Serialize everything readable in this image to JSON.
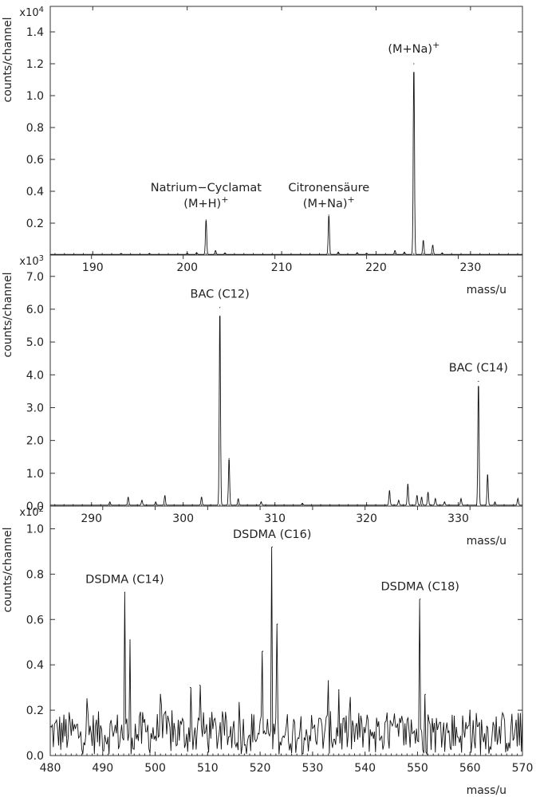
{
  "chart_data": [
    {
      "type": "line",
      "ylabel": "counts/channel",
      "xlabel": "mass/u",
      "y_multiplier": "x10",
      "y_multiplier_exp": "4",
      "xlim": [
        185.5,
        235.5
      ],
      "ylim": [
        0,
        1.56
      ],
      "x_ticks": [
        190,
        200,
        210,
        220,
        230
      ],
      "y_ticks": [
        0.2,
        0.4,
        0.6,
        0.8,
        1.0,
        1.2,
        1.4
      ],
      "y_tick_labels": [
        "0.2",
        "0.4",
        "0.6",
        "0.8",
        "1.0",
        "1.2",
        "1.4"
      ],
      "baseline": 0.004,
      "peaks": [
        {
          "x": 202,
          "y": 0.22
        },
        {
          "x": 203,
          "y": 0.025
        },
        {
          "x": 204,
          "y": 0.01
        },
        {
          "x": 200,
          "y": 0.008
        },
        {
          "x": 201,
          "y": 0.012
        },
        {
          "x": 215,
          "y": 0.25
        },
        {
          "x": 216,
          "y": 0.015
        },
        {
          "x": 218,
          "y": 0.012
        },
        {
          "x": 219,
          "y": 0.008
        },
        {
          "x": 222,
          "y": 0.025
        },
        {
          "x": 223,
          "y": 0.015
        },
        {
          "x": 224,
          "y": 1.2
        },
        {
          "x": 225,
          "y": 0.09
        },
        {
          "x": 226,
          "y": 0.06
        },
        {
          "x": 227,
          "y": 0.01
        },
        {
          "x": 193,
          "y": 0.006
        },
        {
          "x": 196,
          "y": 0.006
        }
      ],
      "annotations": [
        {
          "lines": [
            "Natrium−Cyclamat",
            "(M+H)"
          ],
          "sup": "+",
          "x": 202,
          "y": 0.3
        },
        {
          "lines": [
            "Citronensäure",
            "(M+Na)"
          ],
          "sup": "+",
          "x": 215,
          "y": 0.3
        },
        {
          "lines": [
            "(M+Na)"
          ],
          "sup": "+",
          "x": 224,
          "y": 1.27
        }
      ]
    },
    {
      "type": "line",
      "ylabel": "counts/channel",
      "xlabel": "mass/u",
      "y_multiplier": "x10",
      "y_multiplier_exp": "3",
      "xlim": [
        285.5,
        337
      ],
      "ylim": [
        0,
        7.65
      ],
      "x_ticks": [
        290,
        300,
        310,
        320,
        330
      ],
      "y_ticks": [
        0.0,
        1.0,
        2.0,
        3.0,
        4.0,
        5.0,
        6.0,
        7.0
      ],
      "y_tick_labels": [
        "0.0",
        "1.0",
        "2.0",
        "3.0",
        "4.0",
        "5.0",
        "6.0",
        "7.0"
      ],
      "baseline": 0.03,
      "peaks": [
        {
          "x": 304,
          "y": 6.05
        },
        {
          "x": 305,
          "y": 1.45
        },
        {
          "x": 306,
          "y": 0.2
        },
        {
          "x": 302,
          "y": 0.25
        },
        {
          "x": 298,
          "y": 0.3
        },
        {
          "x": 294,
          "y": 0.25
        },
        {
          "x": 295.5,
          "y": 0.15
        },
        {
          "x": 292,
          "y": 0.1
        },
        {
          "x": 297,
          "y": 0.1
        },
        {
          "x": 308.5,
          "y": 0.1
        },
        {
          "x": 313,
          "y": 0.06
        },
        {
          "x": 322.5,
          "y": 0.45
        },
        {
          "x": 323.5,
          "y": 0.15
        },
        {
          "x": 324.5,
          "y": 0.65
        },
        {
          "x": 325.5,
          "y": 0.3
        },
        {
          "x": 326,
          "y": 0.25
        },
        {
          "x": 326.7,
          "y": 0.4
        },
        {
          "x": 327.5,
          "y": 0.2
        },
        {
          "x": 328.5,
          "y": 0.1
        },
        {
          "x": 330.3,
          "y": 0.2
        },
        {
          "x": 332.2,
          "y": 3.8
        },
        {
          "x": 333.2,
          "y": 0.95
        },
        {
          "x": 334,
          "y": 0.1
        },
        {
          "x": 336.5,
          "y": 0.2
        }
      ],
      "annotations": [
        {
          "lines": [
            "BAC (C12)"
          ],
          "sup": "",
          "x": 304,
          "y": 6.35
        },
        {
          "lines": [
            "BAC (C14)"
          ],
          "sup": "",
          "x": 332.2,
          "y": 4.1
        }
      ]
    },
    {
      "type": "line",
      "ylabel": "counts/channel",
      "xlabel": "mass/u",
      "y_multiplier": "x10",
      "y_multiplier_exp": "2",
      "xlim": [
        480,
        570
      ],
      "ylim": [
        0,
        1.1
      ],
      "x_ticks": [
        480,
        490,
        500,
        510,
        520,
        530,
        540,
        550,
        560,
        570
      ],
      "y_ticks": [
        0.0,
        0.2,
        0.4,
        0.6,
        0.8,
        1.0
      ],
      "y_tick_labels": [
        "0.0",
        "0.2",
        "0.4",
        "0.6",
        "0.8",
        "1.0"
      ],
      "noise": {
        "level": 0.1,
        "amplitude": 0.12,
        "step": 0.2
      },
      "peaks": [
        {
          "x": 494.2,
          "y": 0.72
        },
        {
          "x": 495.2,
          "y": 0.51
        },
        {
          "x": 487,
          "y": 0.25
        },
        {
          "x": 501,
          "y": 0.27
        },
        {
          "x": 506.7,
          "y": 0.3
        },
        {
          "x": 508.5,
          "y": 0.31
        },
        {
          "x": 520.5,
          "y": 0.46
        },
        {
          "x": 522.3,
          "y": 0.92
        },
        {
          "x": 523.3,
          "y": 0.58
        },
        {
          "x": 533,
          "y": 0.33
        },
        {
          "x": 535,
          "y": 0.29
        },
        {
          "x": 550.5,
          "y": 0.69
        },
        {
          "x": 551.5,
          "y": 0.27
        },
        {
          "x": 560,
          "y": 0.2
        }
      ],
      "annotations": [
        {
          "lines": [
            "DSDMA  (C14)"
          ],
          "sup": "",
          "x": 494.2,
          "y": 0.76
        },
        {
          "lines": [
            "DSDMA  (C16)"
          ],
          "sup": "",
          "x": 522.3,
          "y": 0.96
        },
        {
          "lines": [
            "DSDMA  (C18)"
          ],
          "sup": "",
          "x": 550.5,
          "y": 0.73
        }
      ]
    }
  ]
}
